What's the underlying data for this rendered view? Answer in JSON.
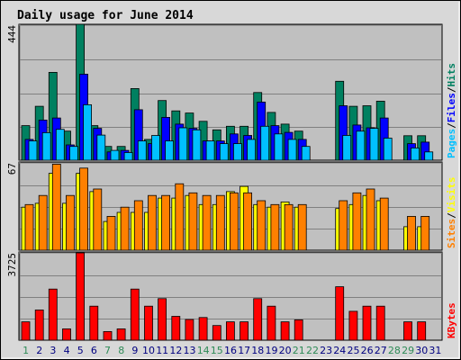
{
  "chart_data": {
    "type": "bar",
    "title": "Daily usage for June 2014",
    "categories": [
      "1",
      "2",
      "3",
      "4",
      "5",
      "6",
      "7",
      "8",
      "9",
      "10",
      "11",
      "12",
      "13",
      "14",
      "15",
      "16",
      "17",
      "18",
      "19",
      "20",
      "21",
      "22",
      "23",
      "24",
      "25",
      "26",
      "27",
      "28",
      "29",
      "30",
      "31"
    ],
    "weekend_days": [
      "1",
      "7",
      "8",
      "14",
      "15",
      "21",
      "22",
      "28",
      "29"
    ],
    "missing_days": [
      "22",
      "23",
      "28"
    ],
    "grid": true,
    "colors": {
      "title": "#0000aa",
      "hits": "#008060",
      "files": "#0000ff",
      "pages": "#00c0ff",
      "visits": "#ffff00",
      "sites": "#ff8000",
      "kbytes": "#ff0000",
      "weekday_label": "#000080",
      "weekend_label": "#2e8b57",
      "plot_bg": "#c0c0c0",
      "frame_bg": "#d8d8d8"
    },
    "panels": [
      {
        "id": "hits-files-pages",
        "ymax": 444,
        "ymax_label": "444",
        "side_label_parts": [
          {
            "text": "Pages",
            "color": "#00c0ff"
          },
          {
            "text": "/",
            "color": "#000000"
          },
          {
            "text": "Files",
            "color": "#0000ff"
          },
          {
            "text": "/",
            "color": "#000000"
          },
          {
            "text": "Hits",
            "color": "#008060"
          }
        ],
        "series": [
          {
            "name": "Hits",
            "color": "#008060",
            "values": [
              113,
              176,
              287,
              95,
              444,
              113,
              45,
              45,
              234,
              68,
              195,
              161,
              154,
              127,
              99,
              111,
              111,
              221,
              156,
              118,
              95,
              null,
              null,
              258,
              176,
              178,
              193,
              null,
              80,
              80,
              null
            ]
          },
          {
            "name": "Files",
            "color": "#0000ff",
            "values": [
              68,
              131,
              138,
              50,
              281,
              104,
              27,
              32,
              165,
              54,
              140,
              118,
              104,
              63,
              63,
              86,
              81,
              190,
              113,
              91,
              68,
              null,
              null,
              178,
              115,
              106,
              138,
              null,
              54,
              59,
              null
            ]
          },
          {
            "name": "Pages",
            "color": "#00c0ff",
            "values": [
              63,
              90,
              101,
              45,
              181,
              82,
              32,
              25,
              63,
              81,
              63,
              106,
              99,
              63,
              54,
              54,
              68,
              111,
              86,
              68,
              45,
              null,
              null,
              81,
              95,
              104,
              72,
              null,
              40,
              27,
              null
            ]
          }
        ]
      },
      {
        "id": "visits-sites",
        "ymax": 67,
        "ymax_label": "67",
        "side_label_parts": [
          {
            "text": "Sites",
            "color": "#ff8000"
          },
          {
            "text": "/",
            "color": "#000000"
          },
          {
            "text": "Visits",
            "color": "#ffff00"
          }
        ],
        "series": [
          {
            "name": "Visits",
            "color": "#ffff00",
            "values": [
              33,
              36,
              59,
              36,
              59,
              45,
              22,
              29,
              29,
              29,
              40,
              40,
              42,
              35,
              35,
              45,
              49,
              35,
              33,
              37,
              33,
              null,
              null,
              32,
              35,
              42,
              38,
              null,
              18,
              18,
              null
            ]
          },
          {
            "name": "Sites",
            "color": "#ff8000",
            "values": [
              35,
              42,
              66,
              42,
              63,
              47,
              26,
              33,
              38,
              42,
              42,
              51,
              44,
              42,
              42,
              44,
              44,
              38,
              35,
              35,
              35,
              null,
              null,
              38,
              44,
              47,
              40,
              null,
              26,
              26,
              null
            ]
          }
        ]
      },
      {
        "id": "kbytes",
        "ymax": 3725,
        "ymax_label": "3725",
        "side_label_parts": [
          {
            "text": "KBytes",
            "color": "#ff0000"
          }
        ],
        "series": [
          {
            "name": "KBytes",
            "color": "#ff0000",
            "values": [
              783,
              1291,
              2180,
              484,
              3725,
              1450,
              369,
              484,
              2180,
              1450,
              1776,
              1016,
              884,
              968,
              626,
              783,
              783,
              1776,
              1450,
              783,
              867,
              null,
              null,
              2282,
              1233,
              1450,
              1450,
              null,
              783,
              783,
              null
            ]
          }
        ]
      }
    ]
  }
}
